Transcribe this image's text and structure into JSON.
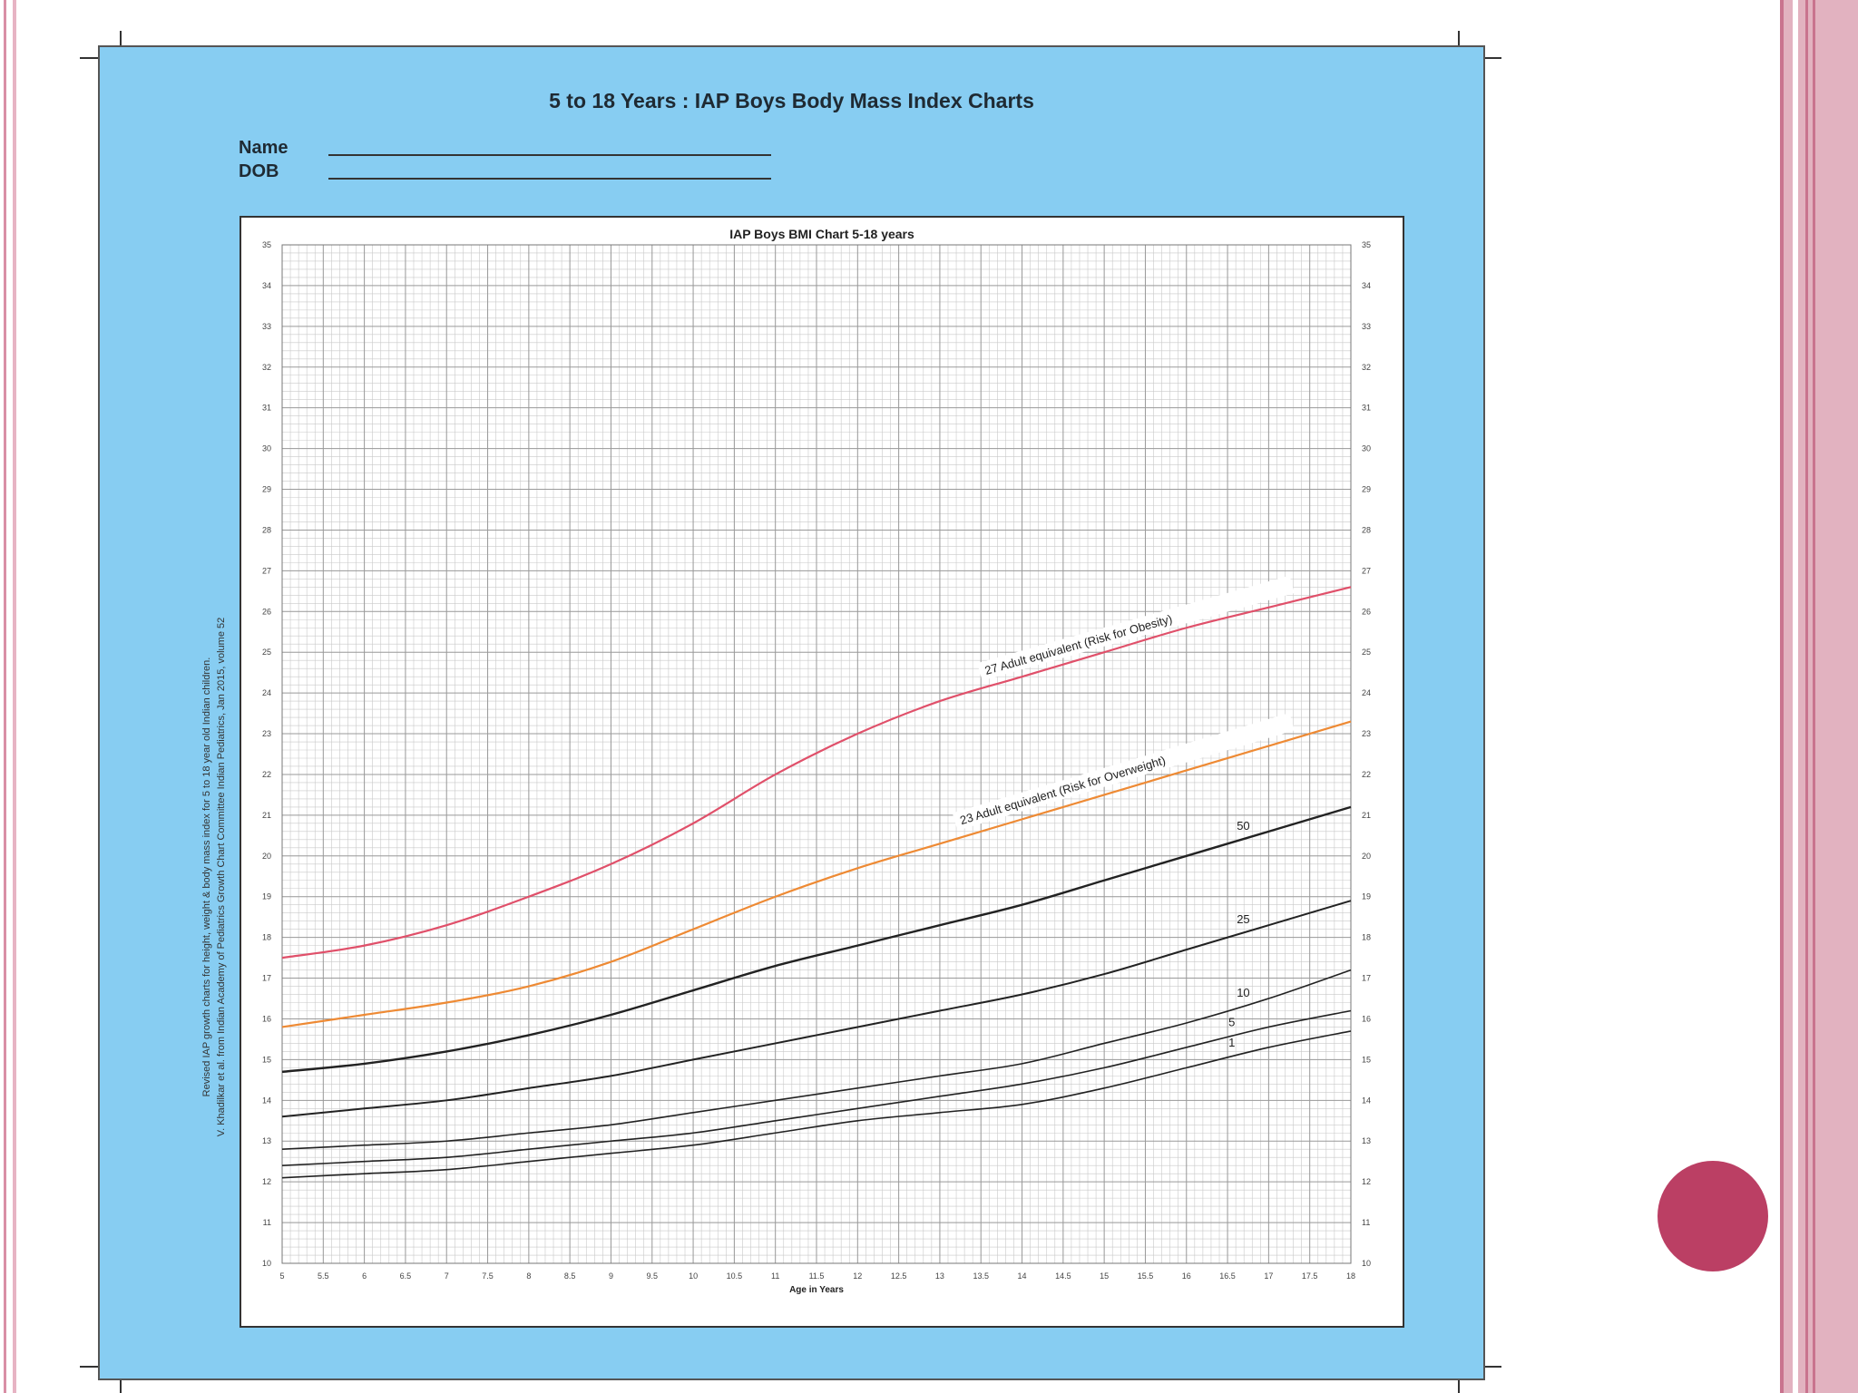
{
  "card_title": "5 to 18 Years : IAP Boys Body Mass Index Charts",
  "form": {
    "name_label": "Name",
    "dob_label": "DOB"
  },
  "credit_lines": [
    "Revised IAP growth charts for height, weight & body mass index for 5 to 18 year old Indian children.",
    "V. Khadilkar et al. from Indian Academy of Pediatrics Growth Chart Committee Indian Pediatrics, Jan 2015, volume 52"
  ],
  "colors": {
    "card_bg": "#87cdf2",
    "obesity_line": "#e0506a",
    "overweight_line": "#ee8a34",
    "percentile_line": "#222222",
    "accent_circle": "#bb3f64"
  },
  "chart_data": {
    "type": "line",
    "title": "IAP Boys  BMI Chart 5-18 years",
    "xlabel": "Age in Years",
    "ylabel": "",
    "xlim": [
      5,
      18
    ],
    "ylim": [
      10,
      35
    ],
    "grid": true,
    "x_ticks": [
      "5",
      "5.5",
      "6",
      "6.5",
      "7",
      "7.5",
      "8",
      "8.5",
      "9",
      "9.5",
      "10",
      "10.5",
      "11",
      "11.5",
      "12",
      "12.5",
      "13",
      "13.5",
      "14",
      "14.5",
      "15",
      "15.5",
      "16",
      "16.5",
      "17",
      "17.5",
      "18"
    ],
    "y_ticks": [
      "10",
      "11",
      "12",
      "13",
      "14",
      "15",
      "16",
      "17",
      "18",
      "19",
      "20",
      "21",
      "22",
      "23",
      "24",
      "25",
      "26",
      "27",
      "28",
      "29",
      "30",
      "31",
      "32",
      "33",
      "34",
      "35"
    ],
    "x": [
      5,
      6,
      7,
      8,
      9,
      10,
      11,
      12,
      13,
      14,
      15,
      16,
      17,
      18
    ],
    "series": [
      {
        "name": "27 Adult equivalent (Risk for Obesity)",
        "values": [
          17.5,
          17.8,
          18.3,
          19.0,
          19.8,
          20.8,
          22.0,
          23.0,
          23.8,
          24.4,
          25.0,
          25.6,
          26.1,
          26.6
        ]
      },
      {
        "name": "23 Adult equivalent (Risk for Overweight)",
        "values": [
          15.8,
          16.1,
          16.4,
          16.8,
          17.4,
          18.2,
          19.0,
          19.7,
          20.3,
          20.9,
          21.5,
          22.1,
          22.7,
          23.3
        ]
      },
      {
        "name": "50",
        "values": [
          14.7,
          14.9,
          15.2,
          15.6,
          16.1,
          16.7,
          17.3,
          17.8,
          18.3,
          18.8,
          19.4,
          20.0,
          20.6,
          21.2
        ]
      },
      {
        "name": "25",
        "values": [
          13.6,
          13.8,
          14.0,
          14.3,
          14.6,
          15.0,
          15.4,
          15.8,
          16.2,
          16.6,
          17.1,
          17.7,
          18.3,
          18.9
        ]
      },
      {
        "name": "10",
        "values": [
          12.8,
          12.9,
          13.0,
          13.2,
          13.4,
          13.7,
          14.0,
          14.3,
          14.6,
          14.9,
          15.4,
          15.9,
          16.5,
          17.2
        ]
      },
      {
        "name": "5",
        "values": [
          12.4,
          12.5,
          12.6,
          12.8,
          13.0,
          13.2,
          13.5,
          13.8,
          14.1,
          14.4,
          14.8,
          15.3,
          15.8,
          16.2
        ]
      },
      {
        "name": "1",
        "values": [
          12.1,
          12.2,
          12.3,
          12.5,
          12.7,
          12.9,
          13.2,
          13.5,
          13.7,
          13.9,
          14.3,
          14.8,
          15.3,
          15.7
        ]
      }
    ]
  }
}
